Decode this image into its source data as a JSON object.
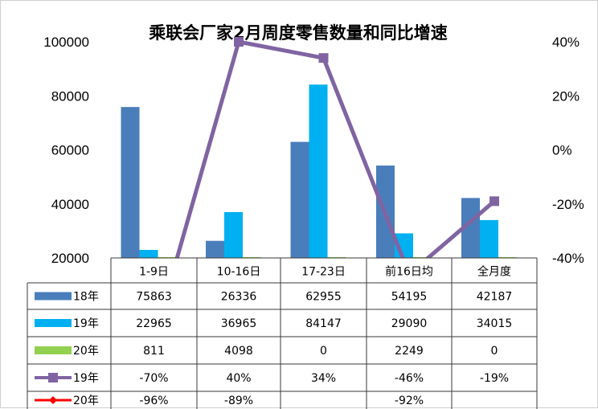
{
  "chart_data": {
    "type": "bar",
    "title": "乘联会厂家2月周度零售数量和同比增速",
    "categories": [
      "1-9日",
      "10-16日",
      "17-23日",
      "前16日均",
      "全月度"
    ],
    "ylim": [
      20000,
      100000
    ],
    "y_ticks": [
      "100000",
      "80000",
      "60000",
      "40000",
      "20000"
    ],
    "y2lim": [
      -40,
      40
    ],
    "y2_ticks": [
      "40%",
      "20%",
      "0%",
      "-20%",
      "-40%"
    ],
    "grid": false,
    "legend": "data table below plot",
    "series": [
      {
        "name": "18年",
        "kind": "bar",
        "axis": "left",
        "color": "#4a7ebb",
        "values": [
          75863,
          26336,
          62955,
          54195,
          42187
        ],
        "labels": [
          "75863",
          "26336",
          "62955",
          "54195",
          "42187"
        ]
      },
      {
        "name": "19年",
        "kind": "bar",
        "axis": "left",
        "color": "#00b0f0",
        "values": [
          22965,
          36965,
          84147,
          29090,
          34015
        ],
        "labels": [
          "22965",
          "36965",
          "84147",
          "29090",
          "34015"
        ]
      },
      {
        "name": "20年",
        "kind": "bar",
        "axis": "left",
        "color": "#92d050",
        "values": [
          811,
          4098,
          0,
          2249,
          0
        ],
        "labels": [
          "811",
          "4098",
          "0",
          "2249",
          "0"
        ]
      },
      {
        "name": "19年",
        "kind": "line",
        "axis": "right",
        "color": "#8064a2",
        "values": [
          -70,
          40,
          34,
          -46,
          -19
        ],
        "labels": [
          "-70%",
          "40%",
          "34%",
          "-46%",
          "-19%"
        ]
      },
      {
        "name": "20年",
        "kind": "line",
        "axis": "right",
        "color": "#ff0000",
        "values": [
          -96,
          -89,
          null,
          -92,
          null
        ],
        "labels": [
          "-96%",
          "-89%",
          "",
          "-92%",
          ""
        ]
      }
    ]
  }
}
